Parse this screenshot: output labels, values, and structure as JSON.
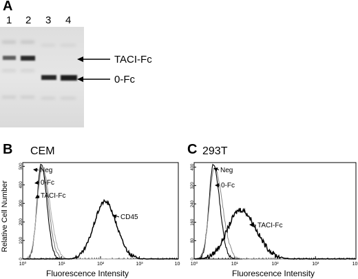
{
  "panel_a": {
    "letter": "A",
    "lanes": [
      "1",
      "2",
      "3",
      "4"
    ],
    "band_labels": {
      "upper": "TACI-Fc",
      "lower": "0-Fc"
    }
  },
  "panel_b": {
    "letter": "B",
    "title": "CEM",
    "y_ticks": [
      "0",
      "100",
      "200",
      "300",
      "400",
      "500"
    ],
    "x_ticks": [
      "10⁰",
      "10¹",
      "10²",
      "10³",
      "10⁴"
    ],
    "annotations": [
      "Neg",
      "0-Fc",
      "TACI-Fc",
      "CD45"
    ]
  },
  "panel_c": {
    "letter": "C",
    "title": "293T",
    "y_ticks": [
      "0",
      "80",
      "160",
      "240",
      "320",
      "400"
    ],
    "x_ticks": [
      "10⁰",
      "10¹",
      "10²",
      "10³",
      "10⁴"
    ],
    "annotations": [
      "Neg",
      "0-Fc",
      "TACI-Fc"
    ]
  },
  "shared": {
    "xlabel": "Fluorescence Intensity",
    "ylabel": "Relative Cell Number"
  },
  "chart_data": [
    {
      "type": "line",
      "title": "CEM",
      "xlabel": "Fluorescence Intensity",
      "ylabel": "Relative Cell Number",
      "x_scale": "log",
      "xlim": [
        1,
        10000
      ],
      "ylim": [
        0,
        520
      ],
      "series": [
        {
          "name": "Neg",
          "peak_x": 3,
          "peak_y": 510
        },
        {
          "name": "0-Fc",
          "peak_x": 3.1,
          "peak_y": 500
        },
        {
          "name": "TACI-Fc",
          "peak_x": 3.2,
          "peak_y": 490
        },
        {
          "name": "CD45",
          "peak_x": 130,
          "peak_y": 310
        }
      ]
    },
    {
      "type": "line",
      "title": "293T",
      "xlabel": "Fluorescence Intensity",
      "ylabel": "Relative Cell Number",
      "x_scale": "log",
      "xlim": [
        1,
        10000
      ],
      "ylim": [
        0,
        420
      ],
      "series": [
        {
          "name": "Neg",
          "peak_x": 3,
          "peak_y": 410
        },
        {
          "name": "0-Fc",
          "peak_x": 3.2,
          "peak_y": 395
        },
        {
          "name": "TACI-Fc",
          "peak_x": 14,
          "peak_y": 215
        }
      ]
    }
  ]
}
